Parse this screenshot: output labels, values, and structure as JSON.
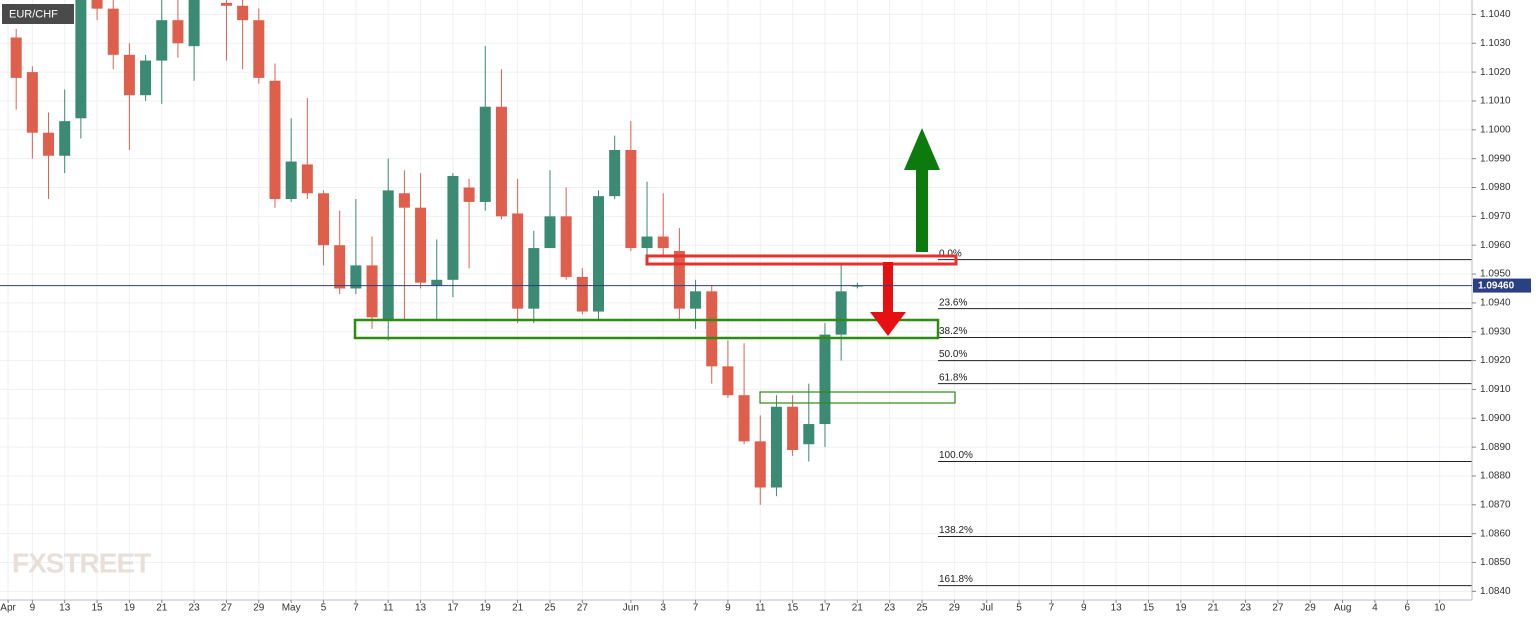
{
  "chart_data": {
    "type": "candlestick",
    "symbol": "EUR/CHF",
    "watermark": "FXSTREET",
    "up_color": "#3a8a74",
    "down_color": "#df5f4d",
    "grid": true,
    "x": [
      1,
      2,
      3,
      4,
      5,
      6,
      7,
      8,
      9,
      10,
      11,
      12,
      14,
      15,
      16,
      17,
      18,
      19,
      20,
      21,
      22,
      23,
      24,
      25,
      26,
      27,
      28,
      29,
      30,
      31,
      32,
      33,
      34,
      35,
      36,
      37,
      38,
      39,
      40,
      41,
      42,
      43,
      44,
      45,
      46,
      47,
      48,
      49,
      50,
      51,
      52,
      53
    ],
    "open": [
      1.1032,
      1.102,
      1.0999,
      1.0991,
      1.1004,
      1.1045,
      1.1042,
      1.1026,
      1.1012,
      1.1024,
      1.1038,
      1.1029,
      1.1044,
      1.1043,
      1.1038,
      1.1017,
      1.0976,
      1.0988,
      1.0978,
      1.096,
      1.0945,
      1.0953,
      1.0934,
      1.0978,
      1.0973,
      1.0946,
      1.0948,
      1.098,
      1.0975,
      1.1008,
      1.0971,
      1.0938,
      1.0959,
      1.097,
      1.0949,
      1.0937,
      1.0977,
      1.0993,
      1.0959,
      1.0963,
      1.0958,
      1.0938,
      1.0944,
      1.0918,
      1.0908,
      1.0892,
      1.0876,
      1.0904,
      1.0891,
      1.0898,
      1.0929,
      1.0946
    ],
    "high": [
      1.1035,
      1.1022,
      1.1006,
      1.1014,
      1.1045,
      1.1045,
      1.1045,
      1.103,
      1.1026,
      1.1045,
      1.1045,
      1.1045,
      1.1045,
      1.1045,
      1.1042,
      1.1023,
      1.1004,
      1.1011,
      1.0979,
      1.0972,
      1.0976,
      1.0963,
      1.099,
      1.0986,
      1.0985,
      1.0962,
      1.0985,
      1.0983,
      1.1029,
      1.1021,
      1.0983,
      1.0965,
      1.0986,
      1.098,
      1.0952,
      1.0979,
      1.0998,
      1.1003,
      1.0982,
      1.0978,
      1.0966,
      1.0948,
      1.0946,
      1.0927,
      1.0926,
      1.0901,
      1.0908,
      1.0908,
      1.0912,
      1.0933,
      1.0954,
      1.0947
    ],
    "low": [
      1.1007,
      1.099,
      1.0976,
      1.0985,
      1.0997,
      1.1038,
      1.1021,
      1.0993,
      1.101,
      1.1009,
      1.1025,
      1.1017,
      1.1024,
      1.1021,
      1.1016,
      1.0973,
      1.0975,
      1.0976,
      1.0953,
      1.0943,
      1.0943,
      1.0931,
      1.0927,
      1.0934,
      1.0945,
      1.0934,
      1.0942,
      1.0952,
      1.0972,
      1.0969,
      1.0933,
      1.0933,
      1.0959,
      1.0948,
      1.0936,
      1.0934,
      1.0976,
      1.0958,
      1.0954,
      1.0956,
      1.0934,
      1.0931,
      1.0912,
      1.0907,
      1.0891,
      1.087,
      1.0873,
      1.0887,
      1.0885,
      1.089,
      1.092,
      1.0945
    ],
    "close": [
      1.1018,
      1.0999,
      1.0991,
      1.1003,
      1.1045,
      1.1042,
      1.1026,
      1.1012,
      1.1024,
      1.1038,
      1.103,
      1.1045,
      1.1043,
      1.1038,
      1.1018,
      1.0976,
      1.0989,
      1.0978,
      1.096,
      1.0945,
      1.0953,
      1.0935,
      1.0979,
      1.0973,
      1.0947,
      1.0948,
      1.0984,
      1.0975,
      1.1008,
      1.097,
      1.0938,
      1.0959,
      1.097,
      1.0949,
      1.0937,
      1.0977,
      1.0993,
      1.0959,
      1.0963,
      1.0959,
      1.0938,
      1.0944,
      1.0918,
      1.0908,
      1.0892,
      1.0876,
      1.0904,
      1.0889,
      1.0898,
      1.0929,
      1.0944,
      1.0946
    ],
    "xlim": [
      0,
      91
    ],
    "xticks": [
      {
        "value": 0.5,
        "label": "Apr"
      },
      {
        "value": 2,
        "label": "9"
      },
      {
        "value": 4,
        "label": "13"
      },
      {
        "value": 6,
        "label": "15"
      },
      {
        "value": 8,
        "label": "19"
      },
      {
        "value": 10,
        "label": "21"
      },
      {
        "value": 12,
        "label": "23"
      },
      {
        "value": 14,
        "label": "27"
      },
      {
        "value": 16,
        "label": "29"
      },
      {
        "value": 18,
        "label": "May"
      },
      {
        "value": 20,
        "label": "5"
      },
      {
        "value": 22,
        "label": "7"
      },
      {
        "value": 24,
        "label": "11"
      },
      {
        "value": 26,
        "label": "13"
      },
      {
        "value": 28,
        "label": "17"
      },
      {
        "value": 30,
        "label": "19"
      },
      {
        "value": 32,
        "label": "21"
      },
      {
        "value": 34,
        "label": "25"
      },
      {
        "value": 36,
        "label": "27"
      },
      {
        "value": 39,
        "label": "Jun"
      },
      {
        "value": 41,
        "label": "3"
      },
      {
        "value": 43,
        "label": "7"
      },
      {
        "value": 45,
        "label": "9"
      },
      {
        "value": 47,
        "label": "11"
      },
      {
        "value": 49,
        "label": "15"
      },
      {
        "value": 51,
        "label": "17"
      },
      {
        "value": 53,
        "label": "21"
      },
      {
        "value": 55,
        "label": "23"
      },
      {
        "value": 57,
        "label": "25"
      },
      {
        "value": 59,
        "label": "29"
      },
      {
        "value": 61,
        "label": "Jul"
      },
      {
        "value": 63,
        "label": "5"
      },
      {
        "value": 65,
        "label": "7"
      },
      {
        "value": 67,
        "label": "9"
      },
      {
        "value": 69,
        "label": "13"
      },
      {
        "value": 71,
        "label": "15"
      },
      {
        "value": 73,
        "label": "19"
      },
      {
        "value": 75,
        "label": "21"
      },
      {
        "value": 77,
        "label": "23"
      },
      {
        "value": 79,
        "label": "27"
      },
      {
        "value": 81,
        "label": "29"
      },
      {
        "value": 83,
        "label": "Aug"
      },
      {
        "value": 85,
        "label": "4"
      },
      {
        "value": 87,
        "label": "6"
      },
      {
        "value": 89,
        "label": "10"
      }
    ],
    "ylim": [
      1.0837,
      1.1045
    ],
    "yticks": [
      {
        "value": 1.084,
        "label": "1.0840"
      },
      {
        "value": 1.085,
        "label": "1.0850"
      },
      {
        "value": 1.086,
        "label": "1.0860"
      },
      {
        "value": 1.087,
        "label": "1.0870"
      },
      {
        "value": 1.088,
        "label": "1.0880"
      },
      {
        "value": 1.089,
        "label": "1.0890"
      },
      {
        "value": 1.09,
        "label": "1.0900"
      },
      {
        "value": 1.091,
        "label": "1.0910"
      },
      {
        "value": 1.092,
        "label": "1.0920"
      },
      {
        "value": 1.093,
        "label": "1.0930"
      },
      {
        "value": 1.094,
        "label": "1.0940"
      },
      {
        "value": 1.095,
        "label": "1.0950"
      },
      {
        "value": 1.096,
        "label": "1.0960"
      },
      {
        "value": 1.097,
        "label": "1.0970"
      },
      {
        "value": 1.098,
        "label": "1.0980"
      },
      {
        "value": 1.099,
        "label": "1.0990"
      },
      {
        "value": 1.1,
        "label": "1.1000"
      },
      {
        "value": 1.101,
        "label": "1.1010"
      },
      {
        "value": 1.102,
        "label": "1.1020"
      },
      {
        "value": 1.103,
        "label": "1.1030"
      },
      {
        "value": 1.104,
        "label": "1.1040"
      }
    ],
    "current_price": {
      "value": 1.0946,
      "label": "1.09460"
    },
    "fib_levels": [
      {
        "label": "0.0%",
        "value": 1.0955
      },
      {
        "label": "23.6%",
        "value": 1.0938
      },
      {
        "label": "38.2%",
        "value": 1.0928
      },
      {
        "label": "50.0%",
        "value": 1.092
      },
      {
        "label": "61.8%",
        "value": 1.0912
      },
      {
        "label": "100.0%",
        "value": 1.0885
      },
      {
        "label": "138.2%",
        "value": 1.0859
      },
      {
        "label": "161.8%",
        "value": 1.0842
      }
    ]
  }
}
